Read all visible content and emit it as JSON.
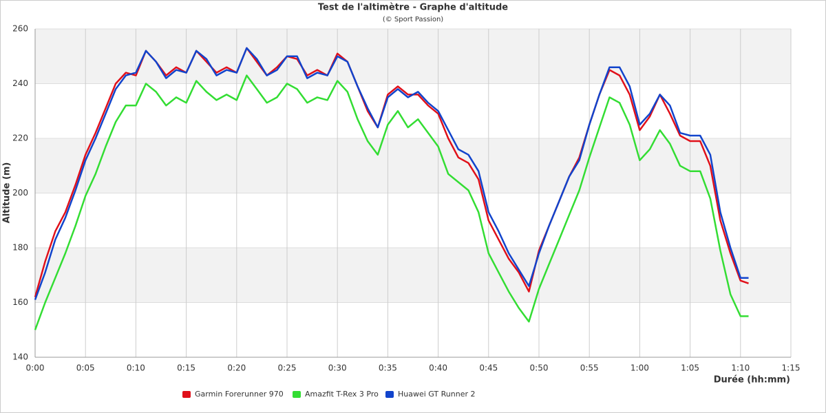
{
  "chart_data": {
    "type": "line",
    "title": "Test de l'altimètre - Graphe d'altitude",
    "subtitle": "(© Sport Passion)",
    "x_label": "Durée (hh:mm)",
    "y_label": "Altitude (m)",
    "x": [
      0,
      1,
      2,
      3,
      4,
      5,
      6,
      7,
      8,
      9,
      10,
      11,
      12,
      13,
      14,
      15,
      16,
      17,
      18,
      19,
      20,
      21,
      22,
      23,
      24,
      25,
      26,
      27,
      28,
      29,
      30,
      31,
      32,
      33,
      34,
      35,
      36,
      37,
      38,
      39,
      40,
      41,
      42,
      43,
      44,
      45,
      46,
      47,
      48,
      49,
      50,
      51,
      52,
      53,
      54,
      55,
      56,
      57,
      58,
      59,
      60,
      61,
      62,
      63,
      64,
      65,
      66,
      67,
      68,
      69,
      70,
      70.8
    ],
    "series": [
      {
        "name": "Garmin Forerunner 970",
        "color": "#e0101a",
        "values": [
          162,
          175,
          186,
          193,
          203,
          214,
          222,
          231,
          240,
          244,
          243,
          252,
          248,
          243,
          246,
          244,
          252,
          248,
          244,
          246,
          244,
          253,
          248,
          243,
          246,
          250,
          249,
          243,
          245,
          243,
          251,
          248,
          239,
          230,
          224,
          236,
          239,
          236,
          236,
          232,
          229,
          220,
          213,
          211,
          205,
          190,
          183,
          176,
          171,
          164,
          179,
          188,
          197,
          206,
          213,
          225,
          236,
          245,
          243,
          236,
          223,
          228,
          236,
          229,
          221,
          219,
          219,
          210,
          190,
          178,
          168,
          167
        ]
      },
      {
        "name": "Amazfit T-Rex 3 Pro",
        "color": "#33dd33",
        "values": [
          150,
          160,
          169,
          178,
          188,
          199,
          207,
          217,
          226,
          232,
          232,
          240,
          237,
          232,
          235,
          233,
          241,
          237,
          234,
          236,
          234,
          243,
          238,
          233,
          235,
          240,
          238,
          233,
          235,
          234,
          241,
          237,
          227,
          219,
          214,
          225,
          230,
          224,
          227,
          222,
          217,
          207,
          204,
          201,
          193,
          178,
          171,
          164,
          158,
          153,
          165,
          174,
          183,
          192,
          201,
          213,
          224,
          235,
          233,
          225,
          212,
          216,
          223,
          218,
          210,
          208,
          208,
          198,
          179,
          163,
          155,
          155
        ]
      },
      {
        "name": "Huawei GT Runner 2",
        "color": "#1144cc",
        "values": [
          161,
          171,
          183,
          191,
          201,
          212,
          220,
          229,
          238,
          243,
          244,
          252,
          248,
          242,
          245,
          244,
          252,
          249,
          243,
          245,
          244,
          253,
          249,
          243,
          245,
          250,
          250,
          242,
          244,
          243,
          250,
          248,
          239,
          231,
          224,
          235,
          238,
          235,
          237,
          233,
          230,
          223,
          216,
          214,
          208,
          193,
          186,
          178,
          172,
          166,
          178,
          188,
          197,
          206,
          212,
          225,
          236,
          246,
          246,
          239,
          225,
          229,
          236,
          232,
          222,
          221,
          221,
          214,
          193,
          180,
          169,
          169
        ]
      }
    ],
    "xlim": [
      0,
      75
    ],
    "xticks": [
      {
        "value": 0,
        "label": "0:00"
      },
      {
        "value": 5,
        "label": "0:05"
      },
      {
        "value": 10,
        "label": "0:10"
      },
      {
        "value": 15,
        "label": "0:15"
      },
      {
        "value": 20,
        "label": "0:20"
      },
      {
        "value": 25,
        "label": "0:25"
      },
      {
        "value": 30,
        "label": "0:30"
      },
      {
        "value": 35,
        "label": "0:35"
      },
      {
        "value": 40,
        "label": "0:40"
      },
      {
        "value": 45,
        "label": "0:45"
      },
      {
        "value": 50,
        "label": "0:50"
      },
      {
        "value": 55,
        "label": "0:55"
      },
      {
        "value": 60,
        "label": "1:00"
      },
      {
        "value": 65,
        "label": "1:05"
      },
      {
        "value": 70,
        "label": "1:10"
      },
      {
        "value": 75,
        "label": "1:15"
      }
    ],
    "ylim": [
      140,
      260
    ],
    "yticks": [
      140,
      160,
      180,
      200,
      220,
      240,
      260
    ],
    "grid": true,
    "legend": "bottom"
  }
}
